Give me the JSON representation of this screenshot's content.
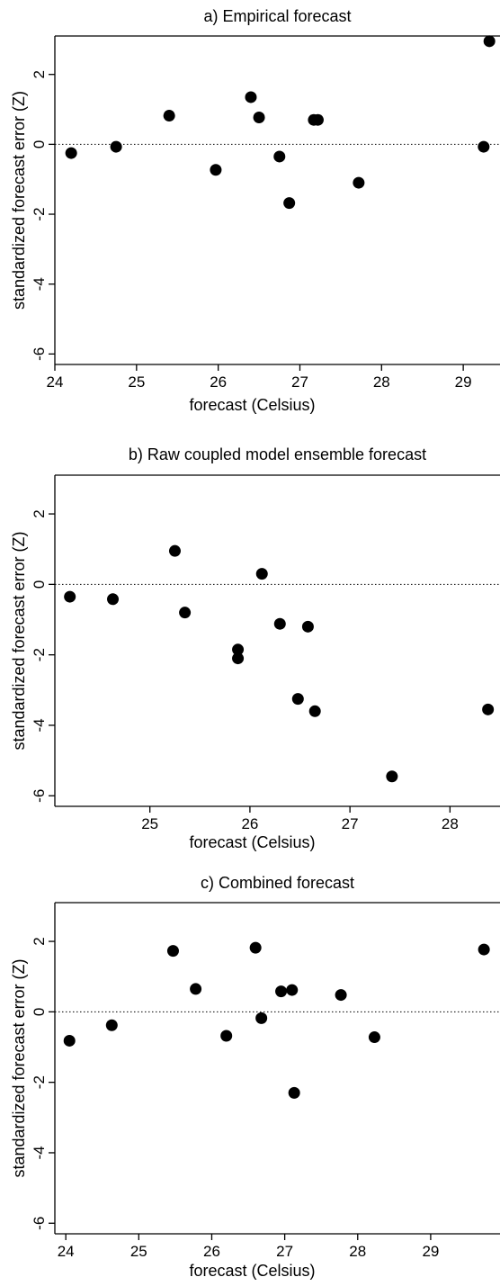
{
  "chart_data": [
    {
      "type": "scatter",
      "title": "a) Empirical forecast",
      "xlabel": "forecast (Celsius)",
      "ylabel": "standardized forecast error (Z)",
      "xlim": [
        24.0,
        29.45
      ],
      "ylim": [
        -6.3,
        3.1
      ],
      "xticks": [
        24,
        25,
        26,
        27,
        28,
        29
      ],
      "yticks": [
        -6,
        -4,
        -2,
        0,
        2
      ],
      "reference_line_y": 0,
      "points": [
        {
          "x": 24.2,
          "y": -0.25
        },
        {
          "x": 24.75,
          "y": -0.07
        },
        {
          "x": 25.4,
          "y": 0.82
        },
        {
          "x": 25.97,
          "y": -0.73
        },
        {
          "x": 26.4,
          "y": 1.35
        },
        {
          "x": 26.5,
          "y": 0.77
        },
        {
          "x": 26.75,
          "y": -0.35
        },
        {
          "x": 26.87,
          "y": -1.68
        },
        {
          "x": 27.17,
          "y": 0.7
        },
        {
          "x": 27.22,
          "y": 0.7
        },
        {
          "x": 27.72,
          "y": -1.1
        },
        {
          "x": 29.25,
          "y": -0.07
        },
        {
          "x": 29.32,
          "y": 2.95
        }
      ]
    },
    {
      "type": "scatter",
      "title": "b) Raw coupled model ensemble forecast",
      "xlabel": "forecast (Celsius)",
      "ylabel": "standardized forecast error (Z)",
      "xlim": [
        24.05,
        28.5
      ],
      "ylim": [
        -6.3,
        3.1
      ],
      "xticks": [
        25,
        26,
        27,
        28
      ],
      "yticks": [
        -6,
        -4,
        -2,
        0,
        2
      ],
      "reference_line_y": 0,
      "points": [
        {
          "x": 24.2,
          "y": -0.35
        },
        {
          "x": 24.63,
          "y": -0.42
        },
        {
          "x": 25.25,
          "y": 0.95
        },
        {
          "x": 25.35,
          "y": -0.8
        },
        {
          "x": 25.88,
          "y": -1.85
        },
        {
          "x": 25.88,
          "y": -2.1
        },
        {
          "x": 26.12,
          "y": 0.3
        },
        {
          "x": 26.3,
          "y": -1.12
        },
        {
          "x": 26.48,
          "y": -3.25
        },
        {
          "x": 26.58,
          "y": -1.2
        },
        {
          "x": 26.65,
          "y": -3.6
        },
        {
          "x": 27.42,
          "y": -5.45
        },
        {
          "x": 28.38,
          "y": -3.55
        }
      ]
    },
    {
      "type": "scatter",
      "title": "c) Combined forecast",
      "xlabel": "forecast (Celsius)",
      "ylabel": "standardized forecast error (Z)",
      "xlim": [
        23.85,
        29.95
      ],
      "ylim": [
        -6.3,
        3.1
      ],
      "xticks": [
        24,
        25,
        26,
        27,
        28,
        29
      ],
      "yticks": [
        -6,
        -4,
        -2,
        0,
        2
      ],
      "reference_line_y": 0,
      "points": [
        {
          "x": 24.05,
          "y": -0.82
        },
        {
          "x": 24.63,
          "y": -0.38
        },
        {
          "x": 25.47,
          "y": 1.73
        },
        {
          "x": 25.78,
          "y": 0.65
        },
        {
          "x": 26.2,
          "y": -0.68
        },
        {
          "x": 26.6,
          "y": 1.82
        },
        {
          "x": 26.68,
          "y": -0.18
        },
        {
          "x": 26.95,
          "y": 0.58
        },
        {
          "x": 27.1,
          "y": 0.62
        },
        {
          "x": 27.13,
          "y": -2.3
        },
        {
          "x": 27.77,
          "y": 0.48
        },
        {
          "x": 28.23,
          "y": -0.72
        },
        {
          "x": 29.73,
          "y": 1.77
        }
      ]
    }
  ]
}
